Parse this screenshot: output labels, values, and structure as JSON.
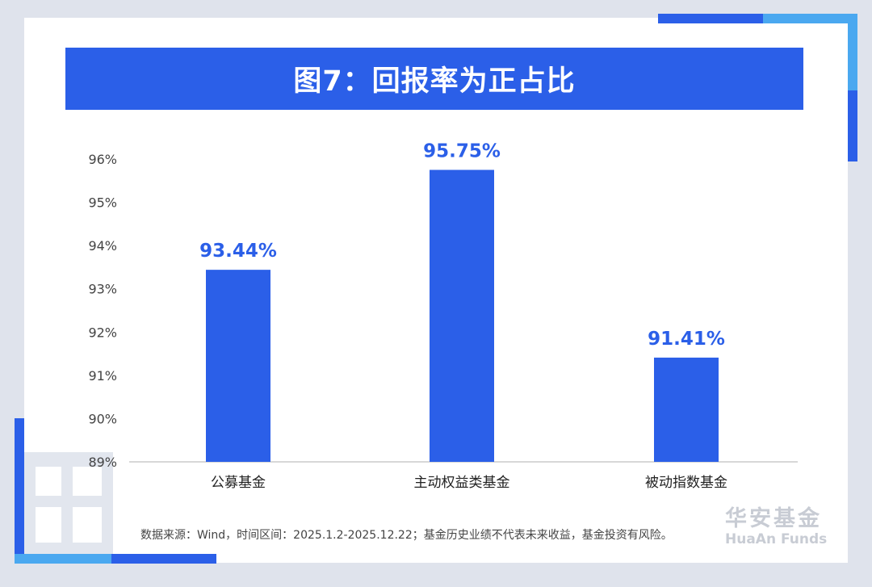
{
  "title": "图7：回报率为正占比",
  "source_note": "数据来源：Wind，时间区间：2025.1.2-2025.12.22；基金历史业绩不代表未来收益，基金投资有风险。",
  "logo": {
    "cn": "华安基金",
    "en": "HuaAn Funds"
  },
  "colors": {
    "bar": "#2b5fe8",
    "label": "#2b5fe8",
    "banner": "#2b5fe8",
    "accent_light": "#4aa8f0"
  },
  "chart_data": {
    "type": "bar",
    "title": "图7：回报率为正占比",
    "categories": [
      "公募基金",
      "主动权益类基金",
      "被动指数基金"
    ],
    "values": [
      93.44,
      95.75,
      91.41
    ],
    "data_labels": [
      "93.44%",
      "95.75%",
      "91.41%"
    ],
    "ylim": [
      89,
      96
    ],
    "yticks": [
      89,
      90,
      91,
      92,
      93,
      94,
      95,
      96
    ],
    "ytick_labels": [
      "89%",
      "90%",
      "91%",
      "92%",
      "93%",
      "94%",
      "95%",
      "96%"
    ],
    "xlabel": "",
    "ylabel": "",
    "grid": false,
    "legend": "none"
  }
}
